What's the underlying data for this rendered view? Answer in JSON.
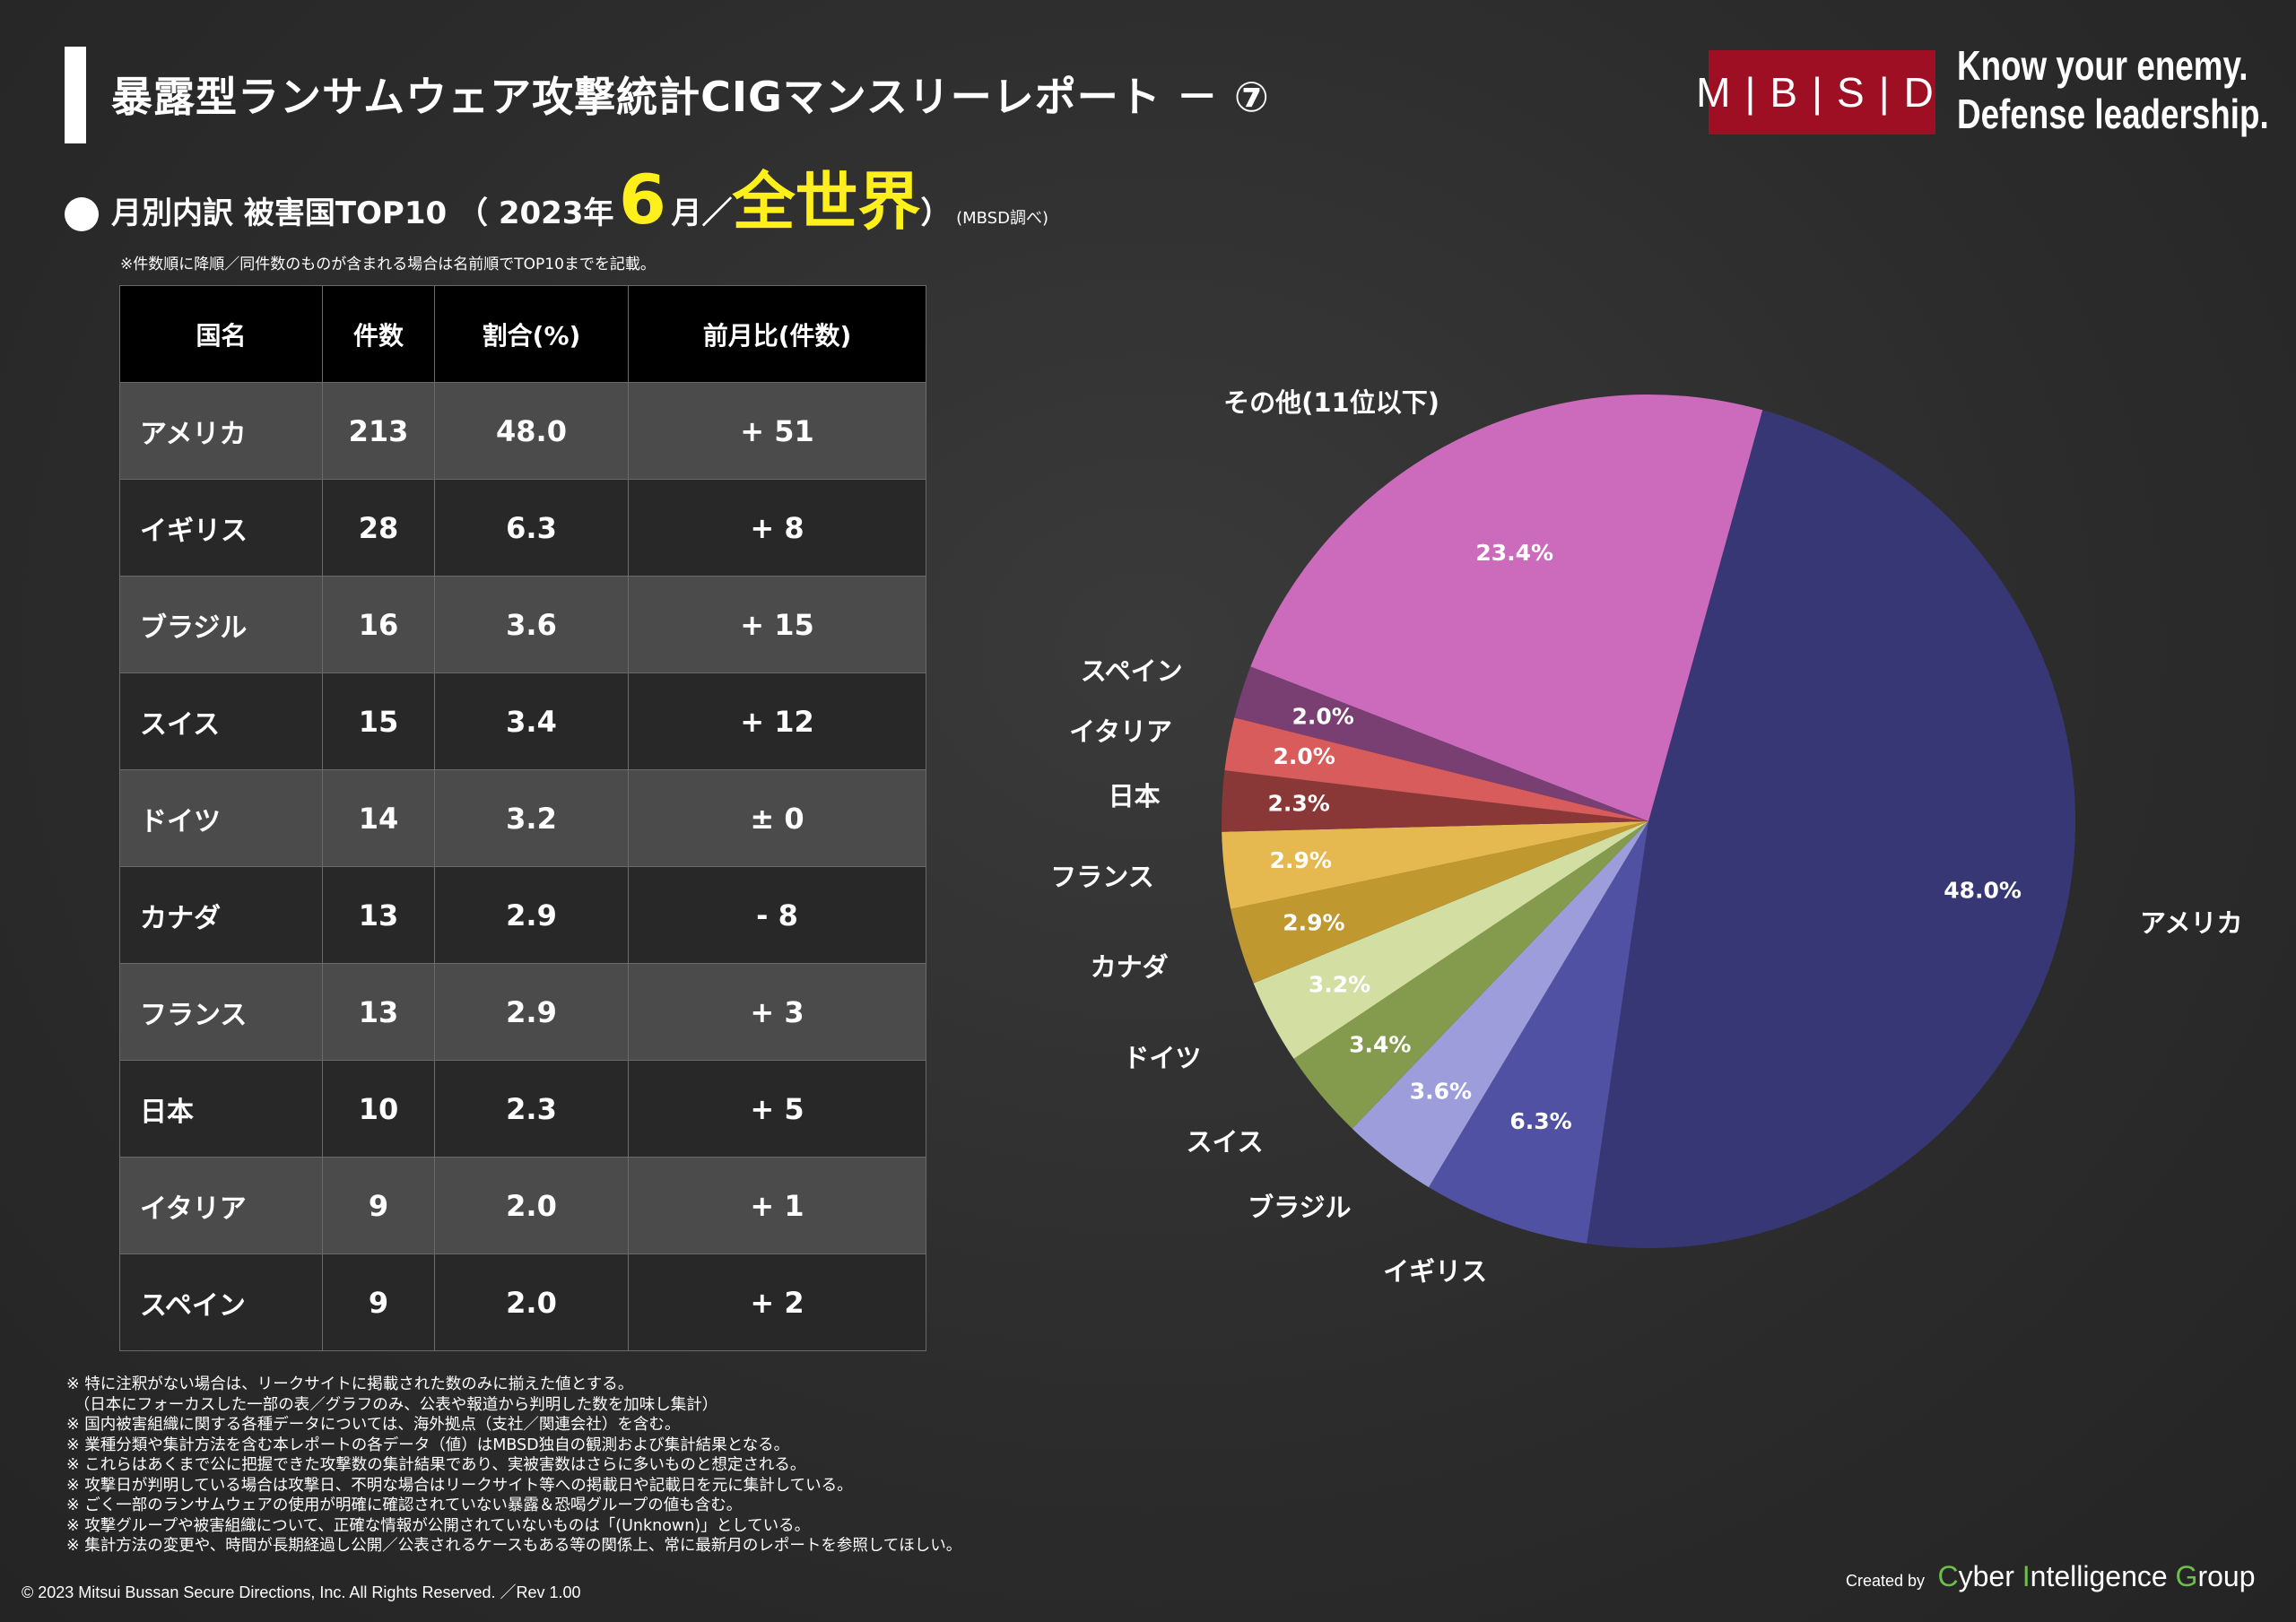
{
  "header": {
    "title": "暴露型ランサムウェア攻撃統計CIGマンスリーレポート － ⑦",
    "logo": "M|B|S|D",
    "slogan_line1": "Know your enemy.",
    "slogan_line2": "Defense leadership."
  },
  "section": {
    "label": "月別内訳 被害国TOP10 （ 2023年",
    "month": "6",
    "month_suffix": "月／",
    "scope": "全世界",
    "close": "）",
    "source": "(MBSD調べ)"
  },
  "note_top": "※件数順に降順／同件数のものが含まれる場合は名前順でTOP10までを記載。",
  "table": {
    "headers": [
      "国名",
      "件数",
      "割合(%)",
      "前月比(件数)"
    ],
    "rows": [
      [
        "アメリカ",
        "213",
        "48.0",
        "+ 51"
      ],
      [
        "イギリス",
        "28",
        "6.3",
        "+ 8"
      ],
      [
        "ブラジル",
        "16",
        "3.6",
        "+ 15"
      ],
      [
        "スイス",
        "15",
        "3.4",
        "+ 12"
      ],
      [
        "ドイツ",
        "14",
        "3.2",
        "± 0"
      ],
      [
        "カナダ",
        "13",
        "2.9",
        "- 8"
      ],
      [
        "フランス",
        "13",
        "2.9",
        "+ 3"
      ],
      [
        "日本",
        "10",
        "2.3",
        "+ 5"
      ],
      [
        "イタリア",
        "9",
        "2.0",
        "+ 1"
      ],
      [
        "スペイン",
        "9",
        "2.0",
        "+ 2"
      ]
    ]
  },
  "chart_data": {
    "type": "pie",
    "categories": [
      "アメリカ",
      "イギリス",
      "ブラジル",
      "スイス",
      "ドイツ",
      "カナダ",
      "フランス",
      "日本",
      "イタリア",
      "スペイン",
      "その他(11位以下)"
    ],
    "values": [
      48.0,
      6.3,
      3.6,
      3.4,
      3.2,
      2.9,
      2.9,
      2.3,
      2.0,
      2.0,
      23.4
    ],
    "value_labels": [
      "48.0%",
      "6.3%",
      "3.6%",
      "3.4%",
      "3.2%",
      "2.9%",
      "2.9%",
      "2.3%",
      "2.0%",
      "2.0%",
      "23.4%"
    ],
    "colors": [
      "#383775",
      "#5051a3",
      "#9d9ddc",
      "#849a4c",
      "#d3dea2",
      "#c09830",
      "#e6b950",
      "#8a3737",
      "#d95c5c",
      "#7a3f72",
      "#cc6bbc"
    ],
    "label_colors": [
      "#ffffff",
      "#ffffff",
      "#ffffff",
      "#ffffff",
      "#ffffff",
      "#ffffff",
      "#ffffff",
      "#ffffff",
      "#ffffff",
      "#ffffff",
      "#ffffff"
    ]
  },
  "notes": [
    "※ 特に注釈がない場合は、リークサイトに掲載された数のみに揃えた値とする。",
    "　（日本にフォーカスした一部の表／グラフのみ、公表や報道から判明した数を加味し集計）",
    "※ 国内被害組織に関する各種データについては、海外拠点（支社／関連会社）を含む。",
    "※ 業種分類や集計方法を含む本レポートの各データ（値）はMBSD独自の観測および集計結果となる。",
    "※ これらはあくまで公に把握できた攻撃数の集計結果であり、実被害数はさらに多いものと想定される。",
    "※ 攻撃日が判明している場合は攻撃日、不明な場合はリークサイト等への掲載日や記載日を元に集計している。",
    "※ ごく一部のランサムウェアの使用が明確に確認されていない暴露＆恐喝グループの値も含む。",
    "※ 攻撃グループや被害組織について、正確な情報が公開されていないものは「(Unknown)」としている。",
    "※ 集計方法の変更や、時間が長期経過し公開／公表されるケースもある等の関係上、常に最新月のレポートを参照してほしい。"
  ],
  "footer": {
    "copyright": "© 2023 Mitsui Bussan Secure Directions, Inc.  All Rights Reserved. ／Rev 1.00",
    "created_by": "Created by",
    "cig_c": "C",
    "cig_1": "yber ",
    "cig_i": "I",
    "cig_2": "ntelligence ",
    "cig_g": "G",
    "cig_3": "roup"
  }
}
